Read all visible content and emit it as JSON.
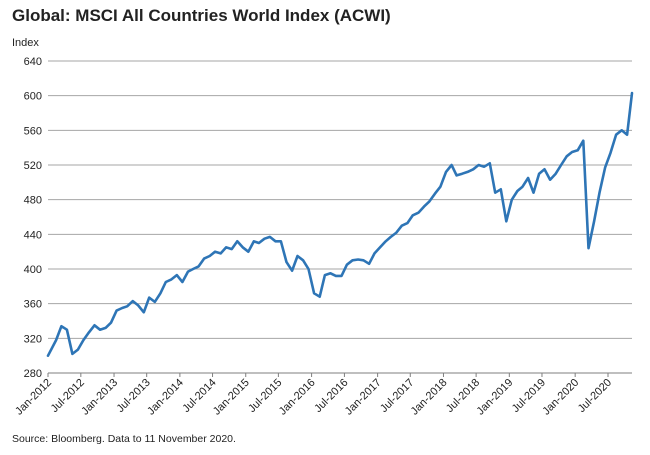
{
  "chart_data": {
    "type": "line",
    "title": "Global: MSCI All Countries World Index (ACWI)",
    "ylabel": "Index",
    "xlabel": "",
    "ylim": [
      280,
      640
    ],
    "yticks": [
      280,
      320,
      360,
      400,
      440,
      480,
      520,
      560,
      600,
      640
    ],
    "xlim": [
      "2012-01-01",
      "2020-11-11"
    ],
    "xticks": [
      "Jan-2012",
      "Jul-2012",
      "Jan-2013",
      "Jul-2013",
      "Jan-2014",
      "Jul-2014",
      "Jan-2015",
      "Jul-2015",
      "Jan-2016",
      "Jul-2016",
      "Jan-2017",
      "Jul-2017",
      "Jan-2018",
      "Jul-2018",
      "Jan-2019",
      "Jul-2019",
      "Jan-2020",
      "Jul-2020"
    ],
    "grid": "horizontal",
    "legend": "none",
    "colors": {
      "line": "#2e75b6",
      "grid": "#a6a6a6",
      "axis": "#7f7f7f"
    },
    "series": [
      {
        "x": [
          "2012-01",
          "2012-02",
          "2012-03",
          "2012-04",
          "2012-05",
          "2012-06",
          "2012-07",
          "2012-08",
          "2012-09",
          "2012-10",
          "2012-11",
          "2012-12",
          "2013-01",
          "2013-02",
          "2013-03",
          "2013-04",
          "2013-05",
          "2013-06",
          "2013-07",
          "2013-08",
          "2013-09",
          "2013-10",
          "2013-11",
          "2013-12",
          "2014-01",
          "2014-02",
          "2014-03",
          "2014-04",
          "2014-05",
          "2014-06",
          "2014-07",
          "2014-08",
          "2014-09",
          "2014-10",
          "2014-11",
          "2014-12",
          "2015-01",
          "2015-02",
          "2015-03",
          "2015-04",
          "2015-05",
          "2015-06",
          "2015-07",
          "2015-08",
          "2015-09",
          "2015-10",
          "2015-11",
          "2015-12",
          "2016-01",
          "2016-02",
          "2016-03",
          "2016-04",
          "2016-05",
          "2016-06",
          "2016-07",
          "2016-08",
          "2016-09",
          "2016-10",
          "2016-11",
          "2016-12",
          "2017-01",
          "2017-02",
          "2017-03",
          "2017-04",
          "2017-05",
          "2017-06",
          "2017-07",
          "2017-08",
          "2017-09",
          "2017-10",
          "2017-11",
          "2017-12",
          "2018-01",
          "2018-02",
          "2018-03",
          "2018-04",
          "2018-05",
          "2018-06",
          "2018-07",
          "2018-08",
          "2018-09",
          "2018-10",
          "2018-11",
          "2018-12",
          "2019-01",
          "2019-02",
          "2019-03",
          "2019-04",
          "2019-05",
          "2019-06",
          "2019-07",
          "2019-08",
          "2019-09",
          "2019-10",
          "2019-11",
          "2019-12",
          "2020-01",
          "2020-02",
          "2020-03",
          "2020-04",
          "2020-05",
          "2020-06",
          "2020-07",
          "2020-08",
          "2020-09",
          "2020-10",
          "2020-11"
        ],
        "values": [
          300,
          318,
          334,
          330,
          302,
          307,
          318,
          327,
          335,
          330,
          332,
          338,
          352,
          355,
          357,
          363,
          358,
          350,
          367,
          362,
          372,
          385,
          388,
          393,
          385,
          397,
          400,
          403,
          412,
          415,
          420,
          418,
          425,
          423,
          432,
          425,
          420,
          432,
          430,
          435,
          437,
          432,
          432,
          408,
          398,
          415,
          410,
          400,
          372,
          368,
          393,
          395,
          392,
          392,
          405,
          410,
          411,
          410,
          406,
          418,
          425,
          432,
          437,
          442,
          450,
          453,
          462,
          465,
          472,
          478,
          487,
          495,
          512,
          520,
          508,
          510,
          512,
          515,
          520,
          518,
          522,
          488,
          492,
          455,
          480,
          490,
          495,
          505,
          488,
          510,
          515,
          503,
          510,
          520,
          530,
          535,
          537,
          548,
          424,
          455,
          488,
          517,
          534,
          555,
          560,
          555,
          603
        ]
      }
    ]
  },
  "source": "Source: Bloomberg.  Data to 11 November 2020."
}
